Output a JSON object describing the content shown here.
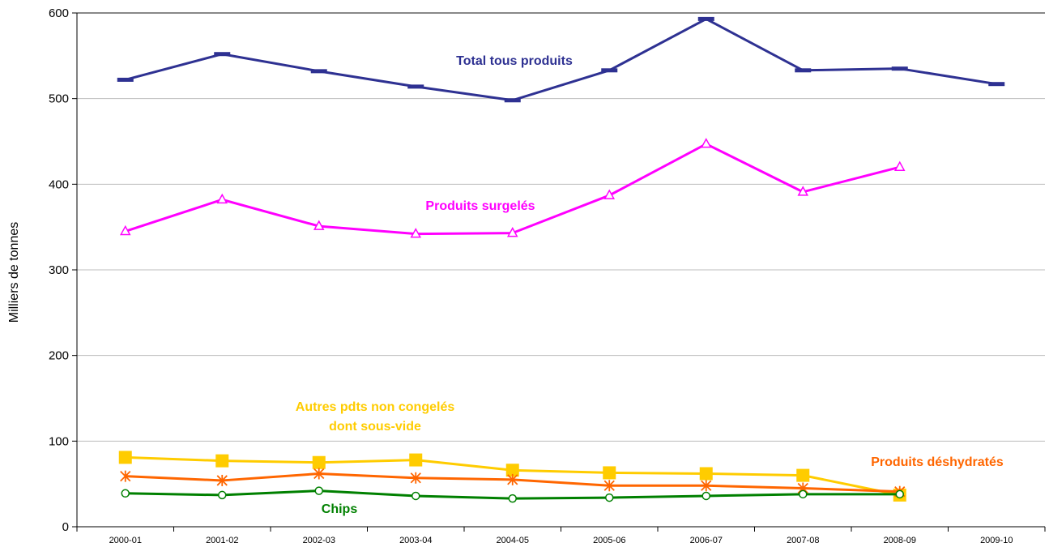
{
  "chart_data": {
    "type": "line",
    "title": "",
    "xlabel": "",
    "ylabel": "Milliers de tonnes",
    "ylim": [
      0,
      600
    ],
    "yticks": [
      0,
      100,
      200,
      300,
      400,
      500,
      600
    ],
    "grid": true,
    "categories": [
      "2000-01",
      "2001-02",
      "2002-03",
      "2003-04",
      "2004-05",
      "2005-06",
      "2006-07",
      "2007-08",
      "2008-09",
      "2009-10"
    ],
    "series": [
      {
        "name": "Total tous produits",
        "label_lines": [
          "Total tous produits"
        ],
        "color": "#2e3192",
        "marker": "dash",
        "values": [
          522,
          552,
          532,
          514,
          498,
          533,
          593,
          533,
          535,
          517
        ]
      },
      {
        "name": "Produits surgelés",
        "label_lines": [
          "Produits surgelés"
        ],
        "color": "#ff00ff",
        "marker": "triangle",
        "values": [
          345,
          382,
          351,
          342,
          343,
          387,
          447,
          391,
          420,
          null
        ]
      },
      {
        "name": "Autres pdts non congelés dont sous-vide",
        "label_lines": [
          "Autres pdts non congelés",
          "dont sous-vide"
        ],
        "color": "#ffcc00",
        "marker": "square",
        "values": [
          81,
          77,
          75,
          78,
          66,
          63,
          62,
          60,
          37,
          null
        ]
      },
      {
        "name": "Produits déshydratés",
        "label_lines": [
          "Produits déshydratés"
        ],
        "color": "#ff6600",
        "marker": "star",
        "values": [
          59,
          54,
          62,
          57,
          55,
          48,
          48,
          45,
          41,
          null
        ]
      },
      {
        "name": "Chips",
        "label_lines": [
          "Chips"
        ],
        "color": "#008000",
        "marker": "circle",
        "values": [
          39,
          37,
          42,
          36,
          33,
          34,
          36,
          38,
          38,
          null
        ]
      }
    ]
  }
}
